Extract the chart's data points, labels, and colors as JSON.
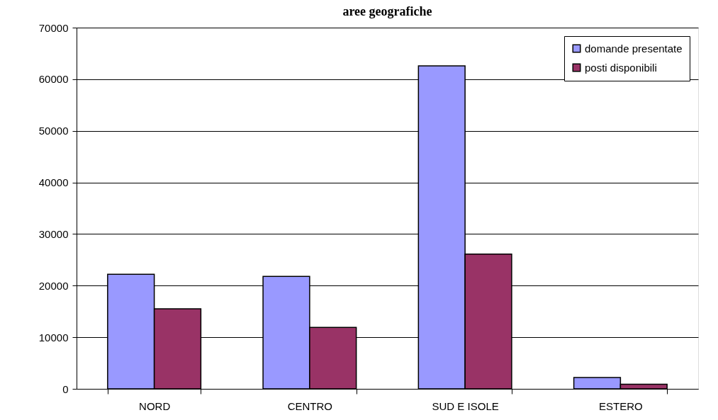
{
  "chart_data": {
    "type": "bar",
    "title": "aree geografiche",
    "categories": [
      "NORD",
      "CENTRO",
      "SUD E ISOLE",
      "ESTERO"
    ],
    "series": [
      {
        "name": "domande presentate",
        "color": "#9999ff",
        "values": [
          22200,
          21800,
          62600,
          2200
        ]
      },
      {
        "name": "posti disponibili",
        "color": "#993366",
        "values": [
          15500,
          11900,
          26100,
          900
        ]
      }
    ],
    "ylim": [
      0,
      70000
    ],
    "yticks": [
      0,
      10000,
      20000,
      30000,
      40000,
      50000,
      60000,
      70000
    ],
    "grid": "y",
    "legend": "top right"
  }
}
